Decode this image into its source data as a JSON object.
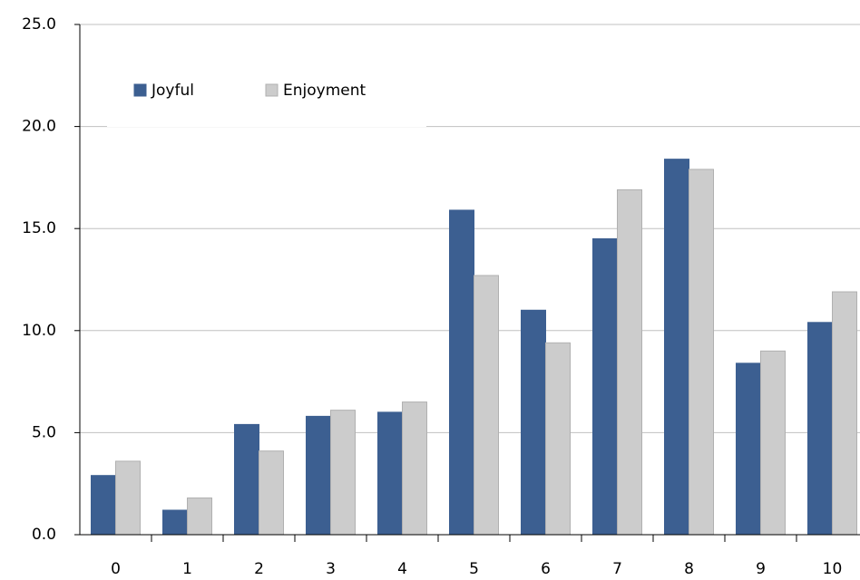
{
  "chart_data": {
    "type": "bar",
    "categories": [
      "0",
      "1",
      "2",
      "3",
      "4",
      "5",
      "6",
      "7",
      "8",
      "9",
      "10"
    ],
    "series": [
      {
        "name": "Joyful",
        "color": "#3c5f91",
        "values": [
          2.9,
          1.2,
          5.4,
          5.8,
          6.0,
          15.9,
          11.0,
          14.5,
          18.4,
          8.4,
          10.4
        ]
      },
      {
        "name": "Enjoyment",
        "color": "#cccccc",
        "values": [
          3.6,
          1.8,
          4.1,
          6.1,
          6.5,
          12.7,
          9.4,
          16.9,
          17.9,
          9.0,
          11.9
        ]
      }
    ],
    "ylim": [
      0,
      25
    ],
    "yticks": [
      {
        "value": 0,
        "label": "0.0"
      },
      {
        "value": 5,
        "label": "5.0"
      },
      {
        "value": 10,
        "label": "10.0"
      },
      {
        "value": 15,
        "label": "15.0"
      },
      {
        "value": 20,
        "label": "20.0"
      },
      {
        "value": 25,
        "label": "25.0"
      }
    ],
    "grid": true,
    "legend": "top-left"
  }
}
